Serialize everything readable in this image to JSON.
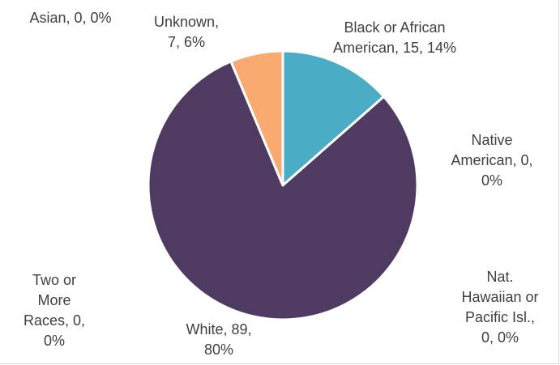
{
  "chart_data": {
    "type": "pie",
    "title": "",
    "slices": [
      {
        "label": "Black or African American",
        "value": 15,
        "percent": "14%",
        "color": "#4bacc6",
        "text_lines": [
          "Black or African",
          "American, 15, 14%"
        ]
      },
      {
        "label": "Native American",
        "value": 0,
        "percent": "0%",
        "color": "#f79646",
        "text_lines": [
          "Native",
          "American, 0,",
          "0%"
        ]
      },
      {
        "label": "Nat. Hawaiian or Pacific Isl.",
        "value": 0,
        "percent": "0%",
        "color": "#9bbb59",
        "text_lines": [
          "Nat.",
          "Hawaiian or",
          "Pacific Isl.,",
          "0, 0%"
        ]
      },
      {
        "label": "White",
        "value": 89,
        "percent": "80%",
        "color": "#4f3a62",
        "text_lines": [
          "White, 89,",
          "80%"
        ]
      },
      {
        "label": "Two or More Races",
        "value": 0,
        "percent": "0%",
        "color": "#8064a2",
        "text_lines": [
          "Two or",
          "More",
          "Races, 0,",
          "0%"
        ]
      },
      {
        "label": "Asian",
        "value": 0,
        "percent": "0%",
        "color": "#c0504d",
        "text_lines": [
          "Asian, 0, 0%"
        ]
      },
      {
        "label": "Unknown",
        "value": 7,
        "percent": "6%",
        "color": "#f9aa70",
        "text_lines": [
          "Unknown,",
          "7, 6%"
        ]
      }
    ],
    "legend": "none",
    "start_angle": "12 o'clock, clockwise"
  }
}
